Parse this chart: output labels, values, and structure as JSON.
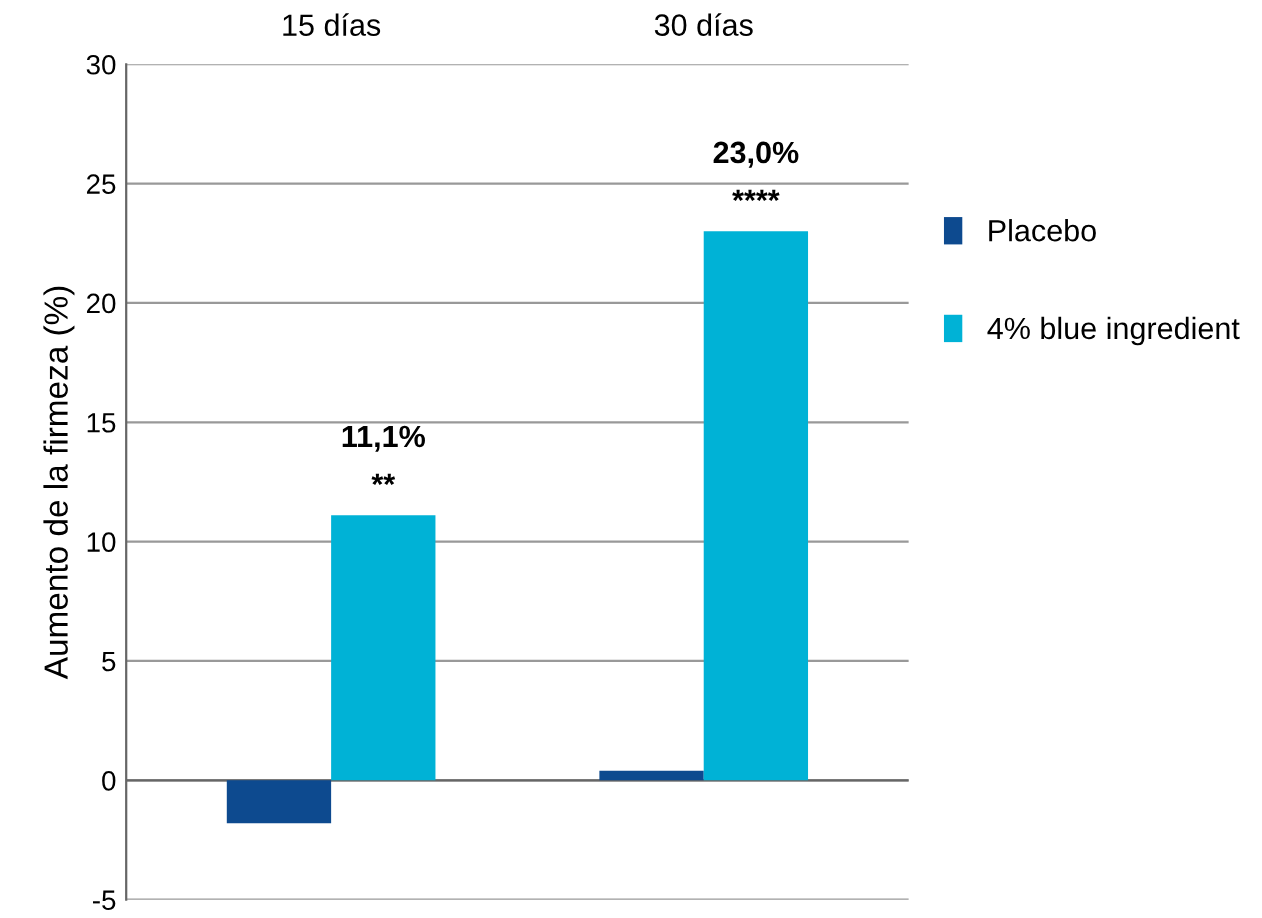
{
  "chart_data": {
    "type": "bar",
    "ylabel": "Aumento de la firmeza (%)",
    "categories": [
      "15 días",
      "30 días"
    ],
    "series": [
      {
        "name": "Placebo",
        "color": "#0d4a8f",
        "values": [
          -1.8,
          0.4
        ]
      },
      {
        "name": "4% blue ingredient",
        "color": "#00b2d6",
        "values": [
          11.1,
          23.0
        ],
        "value_labels": [
          "11,1%",
          "23,0%"
        ]
      }
    ],
    "annotations": [
      {
        "text": "**",
        "x": "15 días",
        "y": 11.1
      },
      {
        "text": "****",
        "x": "30 días",
        "y": 23.0
      }
    ],
    "ylim": [
      -5,
      30
    ],
    "yticks": [
      -5,
      0,
      5,
      10,
      15,
      20,
      25,
      30
    ],
    "grid": "y",
    "legend": "right"
  }
}
